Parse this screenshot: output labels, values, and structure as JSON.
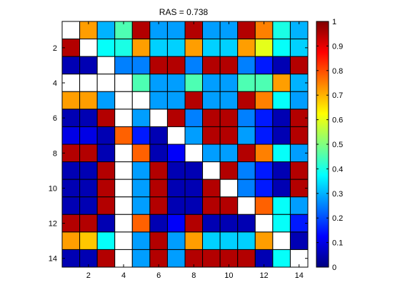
{
  "chart_data": {
    "type": "heatmap",
    "title": "RAS = 0.738",
    "xlabel": "",
    "ylabel": "",
    "rows": 14,
    "cols": 14,
    "x_ticks": [
      2,
      4,
      6,
      8,
      10,
      12,
      14
    ],
    "y_ticks": [
      2,
      4,
      6,
      8,
      10,
      12,
      14
    ],
    "colorbar": {
      "min": 0,
      "max": 1,
      "ticks": [
        0,
        0.1,
        0.2,
        0.3,
        0.4,
        0.5,
        0.6,
        0.7,
        0.8,
        0.9,
        1
      ],
      "tick_labels": [
        "0",
        "0.1",
        "0.2",
        "0.3",
        "0.4",
        "0.5",
        "0.6",
        "0.7",
        "0.8",
        "0.9",
        "1"
      ],
      "colormap": "jet"
    },
    "missing_value_color": "#ffffff",
    "matrix": [
      [
        null,
        0.72,
        0.3,
        0.45,
        0.95,
        0.28,
        0.28,
        0.95,
        0.28,
        0.28,
        0.95,
        0.75,
        0.4,
        0.3
      ],
      [
        0.95,
        null,
        0.38,
        0.4,
        0.72,
        0.33,
        0.33,
        0.72,
        0.33,
        0.33,
        0.72,
        0.6,
        0.38,
        0.33
      ],
      [
        0.05,
        0.05,
        null,
        0.25,
        0.25,
        0.95,
        0.95,
        0.25,
        0.95,
        0.95,
        0.25,
        0.15,
        0.05,
        0.95
      ],
      [
        null,
        null,
        null,
        null,
        0.45,
        0.28,
        0.28,
        0.45,
        0.28,
        0.28,
        0.45,
        0.45,
        0.72,
        0.3
      ],
      [
        0.72,
        0.72,
        0.28,
        null,
        null,
        0.28,
        0.28,
        0.95,
        0.28,
        0.28,
        0.95,
        0.75,
        0.38,
        0.28
      ],
      [
        0.05,
        0.05,
        0.95,
        null,
        0.28,
        null,
        0.95,
        0.25,
        0.95,
        0.95,
        0.25,
        0.15,
        0.05,
        0.95
      ],
      [
        0.1,
        0.1,
        0.05,
        0.78,
        0.15,
        0.05,
        null,
        0.28,
        0.95,
        0.95,
        0.28,
        0.15,
        0.05,
        0.95
      ],
      [
        0.95,
        0.95,
        0.05,
        null,
        0.78,
        0.05,
        0.12,
        null,
        0.28,
        0.28,
        0.95,
        0.75,
        0.38,
        0.28
      ],
      [
        0.05,
        0.05,
        0.95,
        null,
        0.28,
        0.95,
        0.05,
        0.05,
        null,
        0.95,
        0.25,
        0.15,
        0.05,
        0.95
      ],
      [
        0.05,
        0.05,
        0.95,
        null,
        0.28,
        0.95,
        0.05,
        0.05,
        0.95,
        null,
        0.25,
        0.15,
        0.05,
        0.95
      ],
      [
        0.05,
        0.05,
        0.95,
        null,
        0.28,
        0.95,
        0.05,
        0.05,
        0.95,
        0.95,
        null,
        0.78,
        0.38,
        0.28
      ],
      [
        0.95,
        0.95,
        0.05,
        null,
        0.78,
        0.05,
        0.12,
        0.95,
        0.05,
        0.05,
        0.05,
        null,
        0.38,
        0.15
      ],
      [
        0.72,
        0.68,
        0.38,
        null,
        0.28,
        0.95,
        0.28,
        0.72,
        0.33,
        0.33,
        0.33,
        0.72,
        null,
        0.05
      ],
      [
        0.05,
        0.05,
        0.95,
        null,
        0.28,
        0.95,
        0.28,
        0.95,
        0.95,
        0.95,
        0.95,
        0.05,
        0.38,
        null
      ]
    ]
  }
}
